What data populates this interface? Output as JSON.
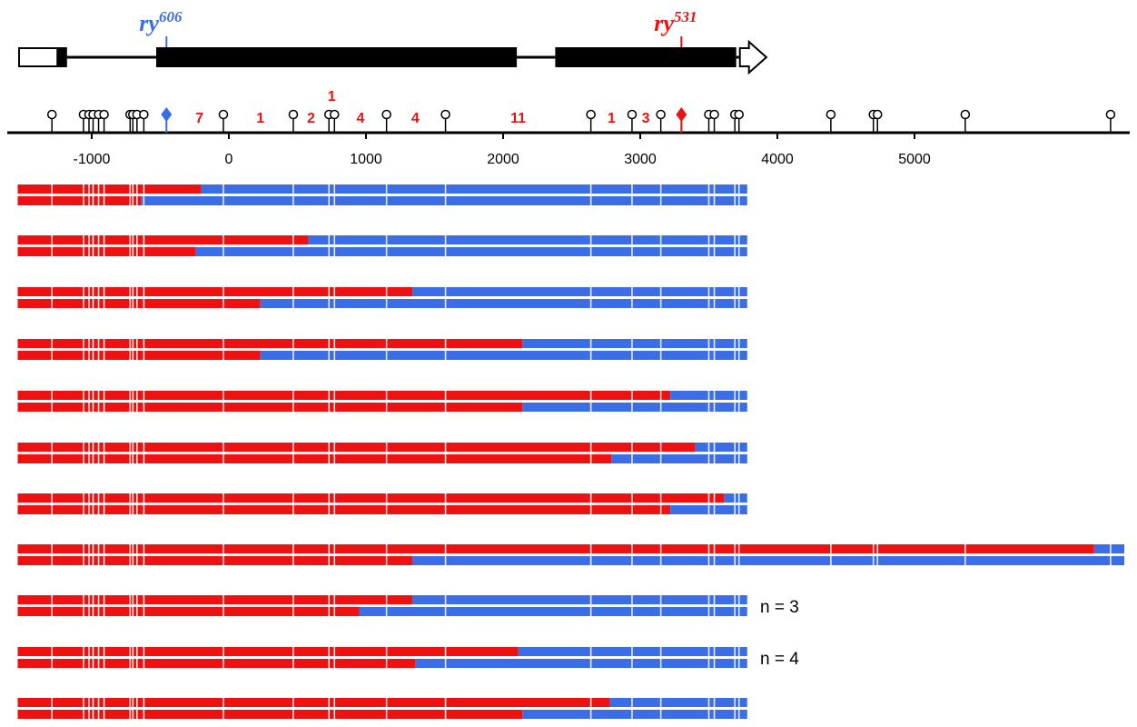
{
  "colors": {
    "red": "#ee1111",
    "blue": "#3b6ee6",
    "black": "#000000",
    "white": "#ffffff"
  },
  "alleles": [
    {
      "base": "ry",
      "sup": "606",
      "color": "#3b6ee6",
      "position": -455
    },
    {
      "base": "ry",
      "sup": "531",
      "color": "#ee1111",
      "position": 3300
    }
  ],
  "gene_model": {
    "exons": [
      {
        "start": -1530,
        "end": -1250,
        "type": "utr"
      },
      {
        "start": -1250,
        "end": -1180,
        "type": "coding"
      },
      {
        "start": -530,
        "end": 2100,
        "type": "coding"
      },
      {
        "start": 2380,
        "end": 3700,
        "type": "coding"
      },
      {
        "start": 3700,
        "end": 3920,
        "type": "utr-arrow"
      }
    ],
    "introns": [
      {
        "start": -1180,
        "end": -530
      },
      {
        "start": 2100,
        "end": 2380
      },
      {
        "start": 3700,
        "end": 3720
      }
    ]
  },
  "axis": {
    "ticks": [
      -1000,
      0,
      1000,
      2000,
      3000,
      4000,
      5000
    ],
    "tick_labels": [
      "-1000",
      "0",
      "1000",
      "2000",
      "3000",
      "4000",
      "5000"
    ]
  },
  "markers": [
    -1290,
    -1060,
    -1020,
    -990,
    -950,
    -910,
    -720,
    -700,
    -670,
    -620,
    -40,
    470,
    730,
    770,
    1150,
    1580,
    2640,
    2940,
    3150,
    3500,
    3540,
    3690,
    3720,
    4390,
    4700,
    4730,
    5370,
    6430
  ],
  "diamonds": [
    {
      "position": -455,
      "color": "#3b6ee6"
    },
    {
      "position": 3300,
      "color": "#ee1111"
    }
  ],
  "interval_counts": [
    {
      "label": "7",
      "position": -215
    },
    {
      "label": "1",
      "position": 230
    },
    {
      "label": "2",
      "position": 600
    },
    {
      "label": "1",
      "position": 750,
      "raised": true
    },
    {
      "label": "4",
      "position": 960
    },
    {
      "label": "4",
      "position": 1360
    },
    {
      "label": "11",
      "position": 2110
    },
    {
      "label": "1",
      "position": 2790
    },
    {
      "label": "3",
      "position": 3040
    }
  ],
  "recombinants": [
    {
      "top": -200,
      "bottom": -640
    },
    {
      "top": 580,
      "bottom": -240
    },
    {
      "top": 1340,
      "bottom": 230
    },
    {
      "top": 2140,
      "bottom": 230
    },
    {
      "top": 3220,
      "bottom": 2140
    },
    {
      "top": 3400,
      "bottom": 2790
    },
    {
      "top": 3610,
      "bottom": 3220
    },
    {
      "top": 6310,
      "bottom": 1340,
      "extended": true
    },
    {
      "top": 1340,
      "bottom": 950,
      "n_label": "n = 3"
    },
    {
      "top": 2110,
      "bottom": 1360,
      "n_label": "n = 4"
    },
    {
      "top": 2780,
      "bottom": 2140
    }
  ]
}
